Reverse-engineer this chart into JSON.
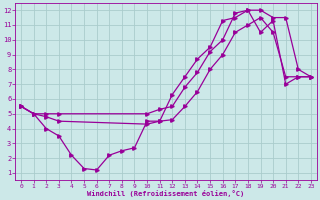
{
  "xlabel": "Windchill (Refroidissement éolien,°C)",
  "bg_color": "#cce8e8",
  "grid_color": "#aacccc",
  "line_color": "#990099",
  "xlim": [
    -0.5,
    23.5
  ],
  "ylim": [
    0.5,
    12.5
  ],
  "xticks": [
    0,
    1,
    2,
    3,
    4,
    5,
    6,
    7,
    8,
    9,
    10,
    11,
    12,
    13,
    14,
    15,
    16,
    17,
    18,
    19,
    20,
    21,
    22,
    23
  ],
  "yticks": [
    1,
    2,
    3,
    4,
    5,
    6,
    7,
    8,
    9,
    10,
    11,
    12
  ],
  "line1_x": [
    0,
    1,
    2,
    3,
    4,
    5,
    6,
    7,
    8,
    9,
    10,
    11,
    12,
    13,
    14,
    15,
    16,
    17,
    18,
    19,
    20,
    21,
    22,
    23
  ],
  "line1_y": [
    5.5,
    5.0,
    4.0,
    3.5,
    2.2,
    1.3,
    1.2,
    2.2,
    2.5,
    2.7,
    4.5,
    4.5,
    6.3,
    7.5,
    8.7,
    9.5,
    11.3,
    11.5,
    12.0,
    10.5,
    11.3,
    7.0,
    7.5,
    7.5
  ],
  "line2_x": [
    0,
    1,
    2,
    3,
    10,
    11,
    12,
    13,
    14,
    15,
    16,
    17,
    18,
    19,
    20,
    21,
    22,
    23
  ],
  "line2_y": [
    5.5,
    5.0,
    5.0,
    5.0,
    5.0,
    5.3,
    5.5,
    6.8,
    7.8,
    9.2,
    10.0,
    11.8,
    12.0,
    12.0,
    11.5,
    11.5,
    8.0,
    7.5
  ],
  "line3_x": [
    0,
    1,
    2,
    3,
    10,
    11,
    12,
    13,
    14,
    15,
    16,
    17,
    18,
    19,
    20,
    21,
    22,
    23
  ],
  "line3_y": [
    5.5,
    5.0,
    4.8,
    4.5,
    4.3,
    4.5,
    4.6,
    5.5,
    6.5,
    8.0,
    9.0,
    10.5,
    11.0,
    11.5,
    10.5,
    7.5,
    7.5,
    7.5
  ]
}
